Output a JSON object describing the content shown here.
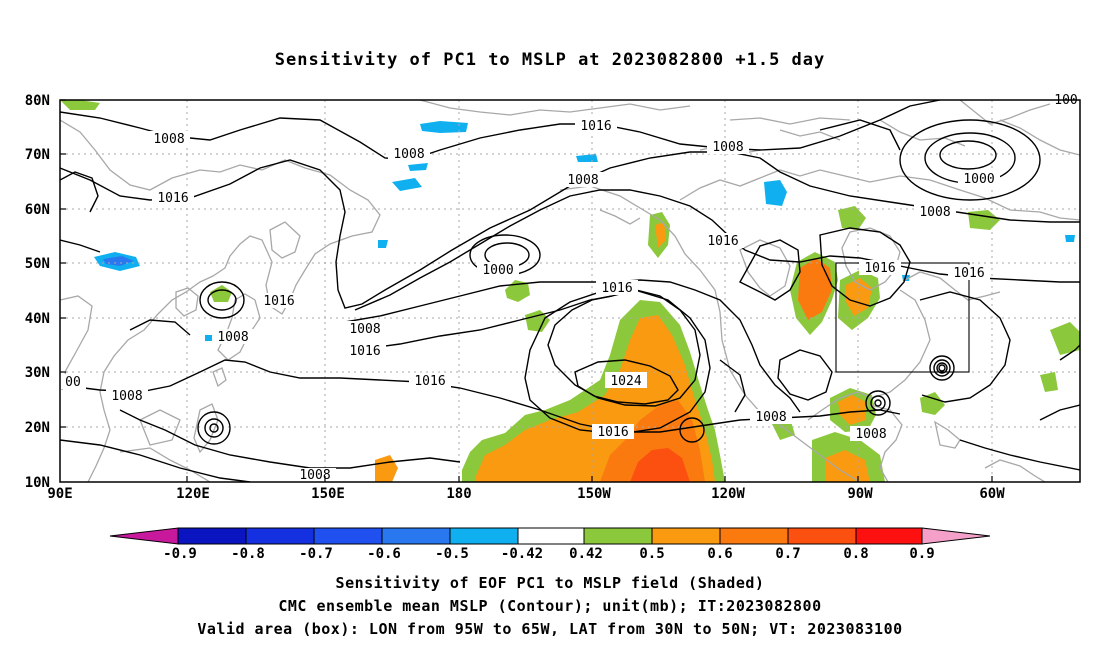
{
  "title": "Sensitivity of PC1 to MSLP at 2023082800 +1.5 day",
  "lat_labels": [
    "80N",
    "70N",
    "60N",
    "50N",
    "40N",
    "30N",
    "20N",
    "10N"
  ],
  "lon_labels": [
    "90E",
    "120E",
    "150E",
    "180",
    "150W",
    "120W",
    "90W",
    "60W"
  ],
  "contour_labels": [
    "1008",
    "1016",
    "1008",
    "1016",
    "1008",
    "1008",
    "1000",
    "1016",
    "1016",
    "1016",
    "1016",
    "1000",
    "1008",
    "1016",
    "1016",
    "1008",
    "1008",
    "1016",
    "1024",
    "1016",
    "1008",
    "1008",
    "1008",
    "00",
    "100",
    "1000",
    "1016",
    "1008"
  ],
  "colorbar": {
    "labels": [
      "-0.9",
      "-0.8",
      "-0.7",
      "-0.6",
      "-0.5",
      "-0.42",
      "0.42",
      "0.5",
      "0.6",
      "0.7",
      "0.8",
      "0.9"
    ],
    "colors": {
      "neg_tip": "#c8189c",
      "neg_09": "#0a14c0",
      "neg_08": "#1430e0",
      "neg_07": "#2050f0",
      "neg_06": "#2a78f0",
      "neg_05": "#10b0f0",
      "neutral": "#ffffff",
      "pos_042": "#8cc83c",
      "pos_05": "#fa9a10",
      "pos_06": "#fb7a10",
      "pos_07": "#fc5010",
      "pos_08": "#ff1010",
      "pos_tip": "#f4a0c8"
    }
  },
  "captions": {
    "line1": "Sensitivity of EOF PC1 to MSLP field (Shaded)",
    "line2": "CMC ensemble mean MSLP (Contour); unit(mb); IT:2023082800",
    "line3": "Valid area (box): LON from 95W to 65W, LAT from 30N to 50N; VT: 2023083100"
  }
}
